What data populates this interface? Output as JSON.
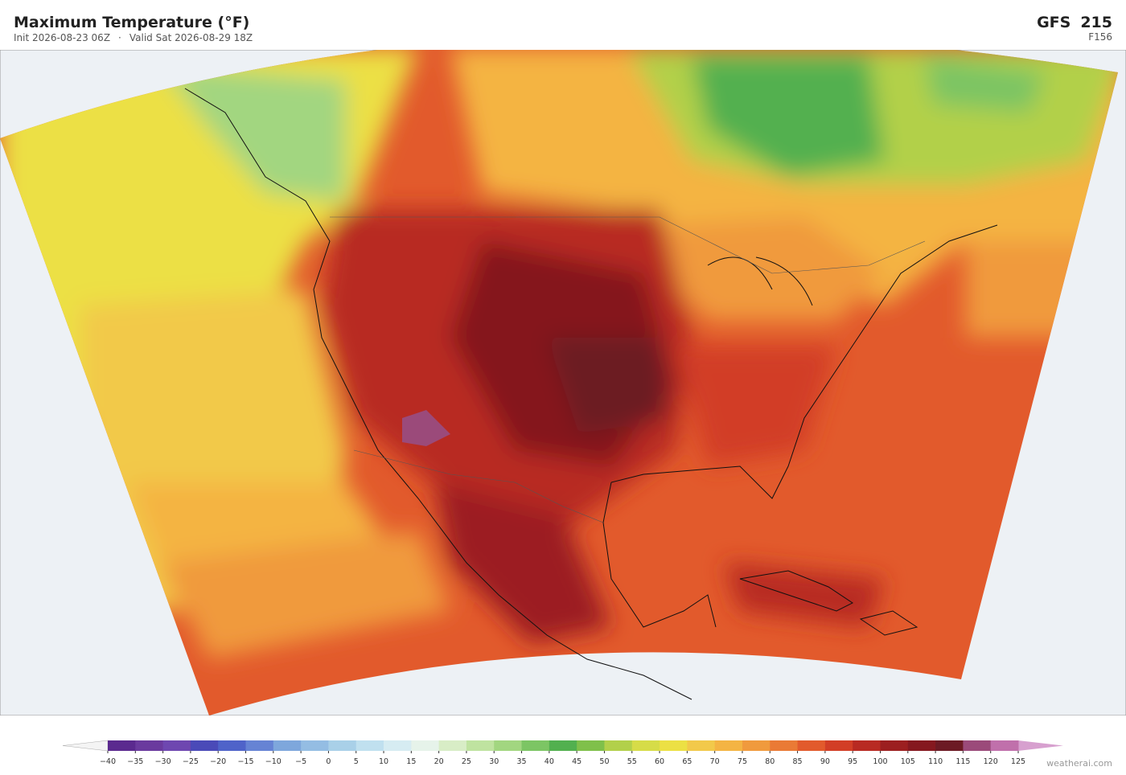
{
  "header": {
    "title": "Maximum Temperature  (°F)",
    "init": "Init 2026-08-23 06Z",
    "separator": "·",
    "valid": "Valid Sat 2026-08-29 18Z",
    "model": "GFS",
    "grid": "215",
    "forecast_hour": "F156"
  },
  "colorbar": {
    "range": [
      -40,
      125
    ],
    "ticks": [
      {
        "value": -40,
        "label": "−40"
      },
      {
        "value": -35,
        "label": "−35"
      },
      {
        "value": -30,
        "label": "−30"
      },
      {
        "value": -25,
        "label": "−25"
      },
      {
        "value": -20,
        "label": "−20"
      },
      {
        "value": -15,
        "label": "−15"
      },
      {
        "value": -10,
        "label": "−10"
      },
      {
        "value": -5,
        "label": "−5"
      },
      0,
      5,
      10,
      15,
      20,
      25,
      30,
      35,
      40,
      45,
      50,
      55,
      60,
      65,
      70,
      75,
      80,
      85,
      90,
      95,
      100,
      105,
      110,
      115,
      120,
      125
    ],
    "colors": [
      "#5b2a8f",
      "#6a3a9e",
      "#6e47b0",
      "#4a4ab8",
      "#4f63c9",
      "#6683d4",
      "#7ea7dc",
      "#94bde3",
      "#a9d0e8",
      "#c0e0ef",
      "#d6ecf2",
      "#e6f3ea",
      "#d8edc6",
      "#bfe3a0",
      "#a2d680",
      "#7cc564",
      "#52b04f",
      "#7fc04a",
      "#b2d04a",
      "#d6dc48",
      "#ece044",
      "#f2c94a",
      "#f4b443",
      "#f09a3d",
      "#ea7a35",
      "#e25a2c",
      "#d23e26",
      "#b82a22",
      "#9c1f20",
      "#85181f",
      "#6c1a24",
      "#9b4a7a",
      "#c070ab"
    ],
    "under_color": "#f4f4f4",
    "over_color": "#d7a0cf"
  },
  "credit": "weatherai.com"
}
